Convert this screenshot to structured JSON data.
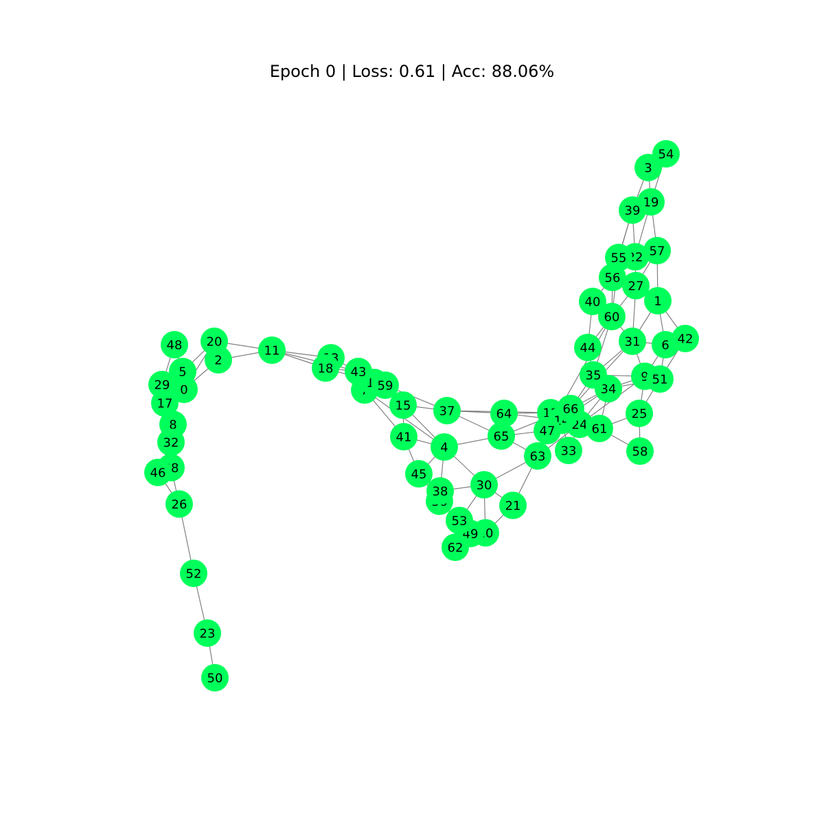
{
  "title": "Epoch 0 | Loss: 0.61 | Acc: 88.06%",
  "colors": {
    "node": "#00ff5a",
    "edge": "#808080",
    "label": "#000000",
    "background": "#ffffff"
  },
  "nodes": [
    "0",
    "1",
    "2",
    "3",
    "4",
    "5",
    "6",
    "7",
    "8",
    "9",
    "10",
    "11",
    "12",
    "13",
    "14",
    "15",
    "16",
    "17",
    "18",
    "19",
    "20",
    "21",
    "22",
    "23",
    "24",
    "25",
    "26",
    "27",
    "28",
    "29",
    "30",
    "31",
    "32",
    "33",
    "34",
    "35",
    "36",
    "37",
    "38",
    "39",
    "40",
    "41",
    "42",
    "43",
    "44",
    "45",
    "46",
    "47",
    "48",
    "49",
    "50",
    "51",
    "52",
    "53",
    "54",
    "55",
    "56",
    "57",
    "58",
    "59",
    "60",
    "61",
    "62",
    "63",
    "64",
    "65",
    "66"
  ],
  "edges": [
    [
      "48",
      "5"
    ],
    [
      "48",
      "29"
    ],
    [
      "20",
      "2"
    ],
    [
      "20",
      "11"
    ],
    [
      "20",
      "5"
    ],
    [
      "20",
      "0"
    ],
    [
      "2",
      "11"
    ],
    [
      "2",
      "0"
    ],
    [
      "5",
      "0"
    ],
    [
      "5",
      "29"
    ],
    [
      "0",
      "17"
    ],
    [
      "29",
      "17"
    ],
    [
      "17",
      "8"
    ],
    [
      "8",
      "32"
    ],
    [
      "32",
      "28"
    ],
    [
      "32",
      "46"
    ],
    [
      "28",
      "46"
    ],
    [
      "28",
      "26"
    ],
    [
      "46",
      "26"
    ],
    [
      "26",
      "52"
    ],
    [
      "52",
      "23"
    ],
    [
      "23",
      "50"
    ],
    [
      "11",
      "13"
    ],
    [
      "11",
      "18"
    ],
    [
      "11",
      "43"
    ],
    [
      "13",
      "43"
    ],
    [
      "18",
      "43"
    ],
    [
      "18",
      "16"
    ],
    [
      "43",
      "16"
    ],
    [
      "43",
      "7"
    ],
    [
      "16",
      "59"
    ],
    [
      "7",
      "59"
    ],
    [
      "7",
      "41"
    ],
    [
      "7",
      "4"
    ],
    [
      "59",
      "15"
    ],
    [
      "59",
      "37"
    ],
    [
      "15",
      "41"
    ],
    [
      "15",
      "4"
    ],
    [
      "15",
      "37"
    ],
    [
      "41",
      "45"
    ],
    [
      "41",
      "4"
    ],
    [
      "4",
      "45"
    ],
    [
      "4",
      "65"
    ],
    [
      "4",
      "30"
    ],
    [
      "4",
      "38"
    ],
    [
      "37",
      "64"
    ],
    [
      "37",
      "65"
    ],
    [
      "37",
      "12"
    ],
    [
      "45",
      "36"
    ],
    [
      "38",
      "30"
    ],
    [
      "36",
      "53"
    ],
    [
      "30",
      "53"
    ],
    [
      "30",
      "10"
    ],
    [
      "30",
      "21"
    ],
    [
      "30",
      "63"
    ],
    [
      "53",
      "49"
    ],
    [
      "53",
      "62"
    ],
    [
      "62",
      "10"
    ],
    [
      "49",
      "10"
    ],
    [
      "10",
      "21"
    ],
    [
      "21",
      "63"
    ],
    [
      "65",
      "63"
    ],
    [
      "65",
      "64"
    ],
    [
      "65",
      "66"
    ],
    [
      "65",
      "47"
    ],
    [
      "64",
      "12"
    ],
    [
      "64",
      "14"
    ],
    [
      "12",
      "24"
    ],
    [
      "12",
      "66"
    ],
    [
      "47",
      "24"
    ],
    [
      "14",
      "33"
    ],
    [
      "14",
      "34"
    ],
    [
      "63",
      "14"
    ],
    [
      "63",
      "24"
    ],
    [
      "66",
      "34"
    ],
    [
      "66",
      "35"
    ],
    [
      "66",
      "31"
    ],
    [
      "24",
      "34"
    ],
    [
      "24",
      "9"
    ],
    [
      "33",
      "24"
    ],
    [
      "61",
      "34"
    ],
    [
      "61",
      "25"
    ],
    [
      "61",
      "58"
    ],
    [
      "25",
      "58"
    ],
    [
      "25",
      "9"
    ],
    [
      "34",
      "51"
    ],
    [
      "34",
      "9"
    ],
    [
      "35",
      "9"
    ],
    [
      "35",
      "60"
    ],
    [
      "35",
      "44"
    ],
    [
      "35",
      "31"
    ],
    [
      "44",
      "40"
    ],
    [
      "44",
      "60"
    ],
    [
      "60",
      "40"
    ],
    [
      "60",
      "56"
    ],
    [
      "60",
      "27"
    ],
    [
      "60",
      "55"
    ],
    [
      "60",
      "31"
    ],
    [
      "60",
      "47"
    ],
    [
      "40",
      "56"
    ],
    [
      "56",
      "55"
    ],
    [
      "56",
      "22"
    ],
    [
      "56",
      "27"
    ],
    [
      "55",
      "22"
    ],
    [
      "55",
      "39"
    ],
    [
      "22",
      "39"
    ],
    [
      "22",
      "57"
    ],
    [
      "22",
      "27"
    ],
    [
      "27",
      "57"
    ],
    [
      "27",
      "1"
    ],
    [
      "27",
      "31"
    ],
    [
      "1",
      "57"
    ],
    [
      "1",
      "6"
    ],
    [
      "1",
      "42"
    ],
    [
      "1",
      "31"
    ],
    [
      "6",
      "42"
    ],
    [
      "6",
      "9"
    ],
    [
      "6",
      "51"
    ],
    [
      "31",
      "6"
    ],
    [
      "31",
      "9"
    ],
    [
      "42",
      "51"
    ],
    [
      "51",
      "25"
    ],
    [
      "39",
      "19"
    ],
    [
      "39",
      "3"
    ],
    [
      "19",
      "3"
    ],
    [
      "19",
      "54"
    ],
    [
      "19",
      "57"
    ],
    [
      "3",
      "54"
    ],
    [
      "39",
      "56"
    ],
    [
      "19",
      "22"
    ]
  ]
}
